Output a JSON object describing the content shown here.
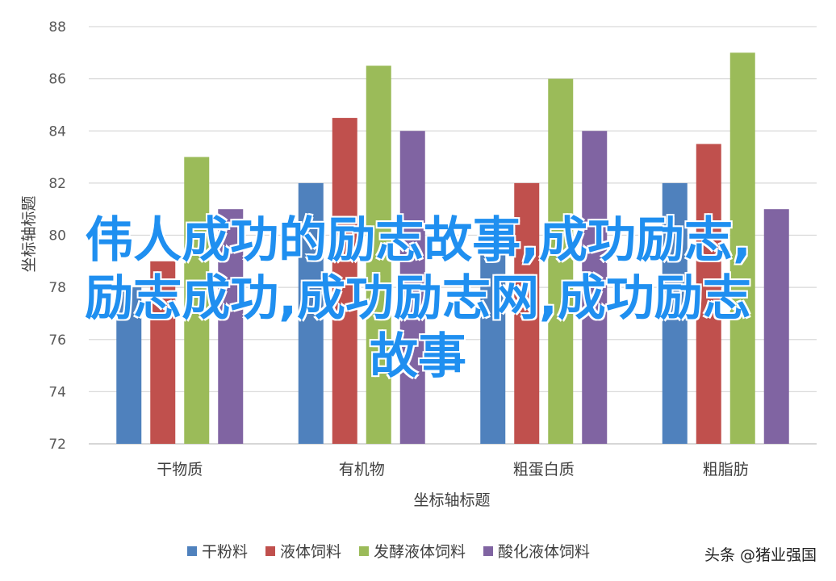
{
  "chart_data": {
    "type": "bar",
    "title": "",
    "xlabel": "坐标轴标题",
    "ylabel": "坐标轴标题",
    "ylim": [
      72,
      88
    ],
    "yticks": [
      72,
      74,
      76,
      78,
      80,
      82,
      84,
      86,
      88
    ],
    "grid": true,
    "legend_position": "bottom",
    "categories": [
      "干物质",
      "有机物",
      "粗蛋白质",
      "粗脂肪"
    ],
    "series": [
      {
        "name": "干粉料",
        "color": "#4f81bd",
        "values": [
          78,
          82,
          80,
          82
        ]
      },
      {
        "name": "液体饲料",
        "color": "#c0504d",
        "values": [
          79,
          84.5,
          82,
          83.5
        ]
      },
      {
        "name": "发酵液体饲料",
        "color": "#9bbb59",
        "values": [
          83,
          86.5,
          86,
          87
        ]
      },
      {
        "name": "酸化液体饲料",
        "color": "#8064a2",
        "values": [
          81,
          84,
          84,
          81
        ]
      }
    ]
  },
  "overlay_title": {
    "line1": "伟人成功的励志故事,成功励志,",
    "line2": "励志成功,成功励志网,成功励志",
    "line3": "故事"
  },
  "watermark": "头条 @猪业强国"
}
